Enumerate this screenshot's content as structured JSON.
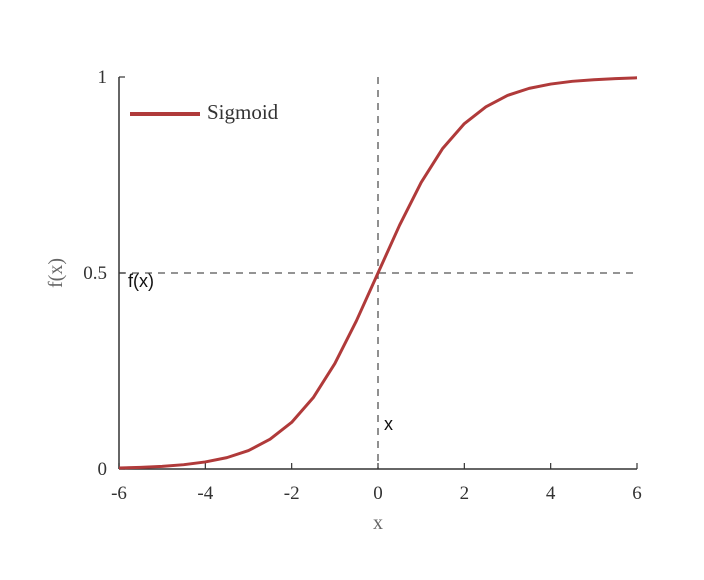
{
  "chart_data": {
    "type": "line",
    "title": "",
    "xlabel": "x",
    "ylabel": "f(x)",
    "xlim": [
      -6,
      6
    ],
    "ylim": [
      0,
      1
    ],
    "xticks": [
      "-6",
      "-4",
      "-2",
      "0",
      "2",
      "4",
      "6"
    ],
    "yticks": [
      "0",
      "0.5",
      "1"
    ],
    "grid": false,
    "legend_position": "top-left",
    "series": [
      {
        "name": "Sigmoid",
        "color": "#b03a3a",
        "x": [
          -6,
          -5.5,
          -5,
          -4.5,
          -4,
          -3.5,
          -3,
          -2.5,
          -2,
          -1.5,
          -1,
          -0.5,
          0,
          0.5,
          1,
          1.5,
          2,
          2.5,
          3,
          3.5,
          4,
          4.5,
          5,
          5.5,
          6
        ],
        "y": [
          0.0025,
          0.0041,
          0.0067,
          0.011,
          0.018,
          0.029,
          0.047,
          0.076,
          0.119,
          0.182,
          0.269,
          0.378,
          0.5,
          0.622,
          0.731,
          0.818,
          0.881,
          0.924,
          0.953,
          0.971,
          0.982,
          0.989,
          0.993,
          0.996,
          0.998
        ]
      }
    ],
    "reference_lines": [
      {
        "orientation": "vertical",
        "value": 0,
        "style": "dashed"
      },
      {
        "orientation": "horizontal",
        "value": 0.5,
        "style": "dashed"
      }
    ],
    "annotations": [
      {
        "text": "f(x)",
        "x": -6,
        "y": 0.5
      },
      {
        "text": "x",
        "x": 0,
        "y": 0.1
      }
    ]
  }
}
